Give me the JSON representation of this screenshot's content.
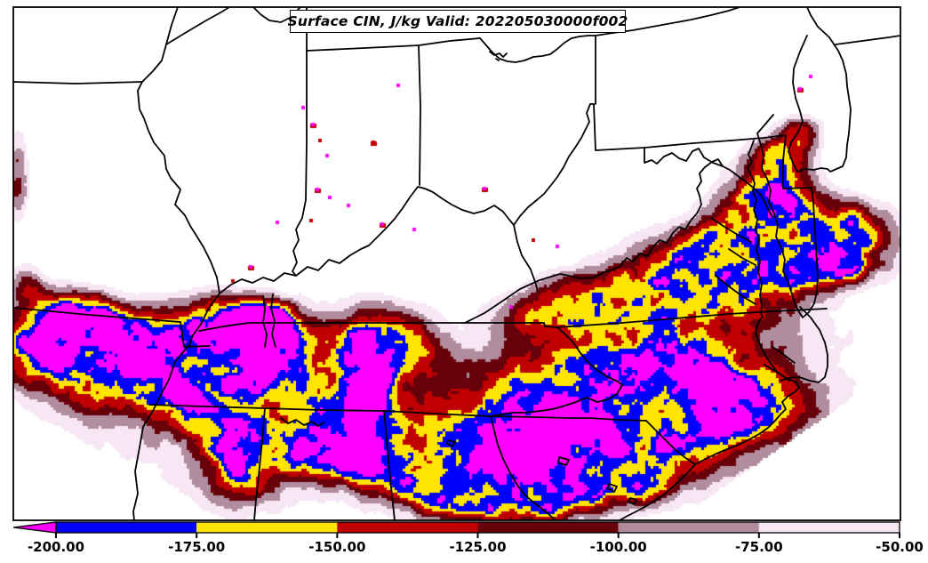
{
  "figure": {
    "title": "Surface CIN, J/kg Valid: 202205030000f002",
    "background": "#FFFFFF",
    "frame_color": "#000000",
    "region_shown": "Ohio Valley / Mid-Atlantic / Southeast US state boundaries and coastline"
  },
  "colorbar": {
    "orientation": "horizontal-bottom",
    "tick_labels": [
      "-200.00",
      "-175.00",
      "-150.00",
      "-125.00",
      "-100.00",
      "-75.00",
      "-50.00"
    ],
    "levels": [
      -200,
      -175,
      -150,
      -125,
      -100,
      -75,
      -50
    ],
    "out_of_range_arrow": {
      "side": "left",
      "color": "#FF00FF"
    },
    "segment_colors": [
      "#0000FF",
      "#FFE400",
      "#C00000",
      "#67000A",
      "#B08C9C",
      "#F7E6F4"
    ]
  },
  "chart_data": {
    "type": "heatmap",
    "title": "Surface CIN, J/kg Valid: 202205030000f002",
    "variable": "Surface CIN",
    "units": "J/kg",
    "valid_time": "202205030000f002",
    "levels": [
      -200,
      -175,
      -150,
      -125,
      -100,
      -75,
      -50
    ],
    "palette": [
      {
        "range": "< -200",
        "color": "#FF00FF",
        "name": "magenta"
      },
      {
        "range": "-200 to -175",
        "color": "#0000FF",
        "name": "blue"
      },
      {
        "range": "-175 to -150",
        "color": "#FFE400",
        "name": "yellow"
      },
      {
        "range": "-150 to -125",
        "color": "#C00000",
        "name": "crimson"
      },
      {
        "range": "-125 to -100",
        "color": "#67000A",
        "name": "dark maroon"
      },
      {
        "range": "-100 to -75",
        "color": "#B08C9C",
        "name": "mauve"
      },
      {
        "range": "-75 to -50",
        "color": "#F7E6F4",
        "name": "pale pink"
      },
      {
        "range": "> -50",
        "color": "#FFFFFF",
        "name": "white (masked)"
      }
    ],
    "legend_position": "bottom",
    "notes": "Filled-contour CIN field; strongest inhibition (magenta/blue) over middle Tennessee, the lower Ohio/Tennessee valley, the Chesapeake Bay / Virginia Tidewater and offshore Mid-Atlantic waters; broad maroon/crimson over the Carolinas and Georgia; white (weak CIN) over Illinois, Indiana, Ohio and Kentucky."
  }
}
